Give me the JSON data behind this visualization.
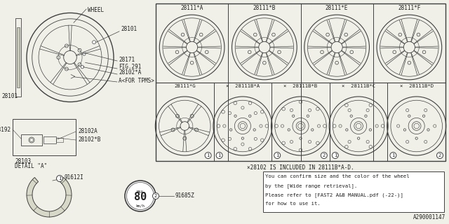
{
  "bg_color": "#f0f0e8",
  "border_color": "#404040",
  "text_color": "#202020",
  "grid_labels_row1": [
    "28111*A",
    "28111*B",
    "28111*E",
    "28111*F"
  ],
  "grid_labels_row2": [
    "28111*G",
    "×  28111B*A",
    "×  28111B*B",
    "×  28111B*C",
    "×  28111B*D"
  ],
  "footnote": "×28102 IS INCLUDED IN 28111B*A-D.",
  "info_box_lines": [
    "You can confirm size and the color of the wheel",
    "by the [Wide range retrieval].",
    "Please refer to [FAST2 A&B MANUAL.pdf (-22-)]",
    "for how to use it."
  ],
  "part_91612I": "91612I",
  "part_91685Z": "91685Z",
  "diagram_id": "A290001147",
  "fs": 5.5,
  "fn": 6.5
}
